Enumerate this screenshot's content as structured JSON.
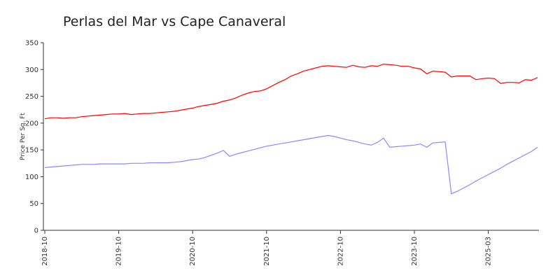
{
  "chart_data": {
    "type": "line",
    "title": "Perlas del Mar vs Cape Canaveral",
    "y_label": "Price Per Sq. Ft",
    "categories": [
      "2018-10",
      null,
      null,
      null,
      null,
      null,
      null,
      null,
      null,
      null,
      null,
      null,
      "2019-10",
      null,
      null,
      null,
      null,
      null,
      null,
      null,
      null,
      null,
      null,
      null,
      "2020-10",
      null,
      null,
      null,
      null,
      null,
      null,
      null,
      null,
      null,
      null,
      null,
      "2021-10",
      null,
      null,
      null,
      null,
      null,
      null,
      null,
      null,
      null,
      null,
      null,
      "2022-10",
      null,
      null,
      null,
      null,
      null,
      null,
      null,
      null,
      null,
      null,
      null,
      "2023-10",
      null,
      null,
      null,
      null,
      null,
      null,
      null,
      null,
      null,
      null,
      null,
      "2025-03",
      null,
      null,
      null,
      null,
      null,
      null,
      null,
      null
    ],
    "series": [
      {
        "color": "#ff0000",
        "values": [
          208,
          210,
          210,
          209,
          210,
          210,
          212,
          213,
          214,
          215,
          216,
          217,
          217,
          218,
          216,
          217,
          218,
          218,
          219,
          220,
          221,
          222,
          224,
          226,
          228,
          231,
          233,
          235,
          237,
          241,
          243,
          247,
          252,
          256,
          259,
          260,
          264,
          270,
          276,
          281,
          288,
          292,
          297,
          300,
          303,
          306,
          307,
          306,
          305,
          304,
          308,
          305,
          304,
          307,
          306,
          310,
          309,
          308,
          306,
          306,
          303,
          301,
          292,
          297,
          296,
          295,
          286,
          288,
          288,
          288,
          281,
          283,
          284,
          283,
          274,
          276,
          276,
          275,
          281,
          280,
          285
        ]
      },
      {
        "color": "#8888ff",
        "values": [
          117,
          118,
          119,
          120,
          121,
          122,
          123,
          123,
          123,
          124,
          124,
          124,
          124,
          124,
          125,
          125,
          125,
          126,
          126,
          126,
          126,
          127,
          128,
          130,
          132,
          133,
          136,
          140,
          144,
          149,
          138,
          142,
          145,
          148,
          151,
          154,
          157,
          159,
          161,
          163,
          165,
          167,
          169,
          171,
          173,
          175,
          177,
          175,
          172,
          169,
          167,
          164,
          161,
          159,
          164,
          172,
          155,
          156,
          157,
          158,
          159,
          161,
          155,
          163,
          164,
          165,
          68,
          73,
          79,
          85,
          92,
          98,
          104,
          110,
          116,
          123,
          129,
          135,
          141,
          147,
          155
        ]
      }
    ],
    "ylim": [
      0,
      350
    ],
    "yticks": [
      0,
      50,
      100,
      150,
      200,
      250,
      300,
      350
    ],
    "grid": false
  }
}
